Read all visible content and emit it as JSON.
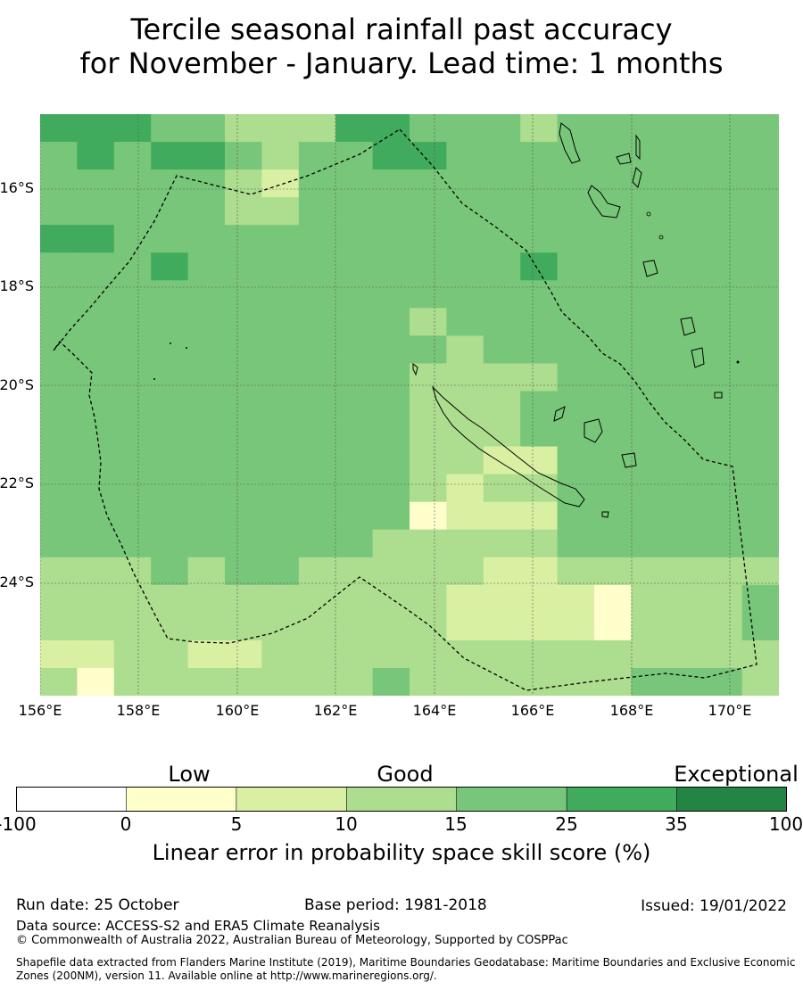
{
  "title_line1": "Tercile seasonal rainfall past accuracy",
  "title_line2": "for November - January. Lead time: 1 months",
  "y_ticks": [
    "16°S",
    "18°S",
    "20°S",
    "22°S",
    "24°S"
  ],
  "x_ticks": [
    "156°E",
    "158°E",
    "160°E",
    "162°E",
    "164°E",
    "166°E",
    "168°E",
    "170°E"
  ],
  "categories": [
    "Low",
    "Good",
    "Exceptional"
  ],
  "colorbar": {
    "label": "Linear error in probability space skill score (%)",
    "ticks": [
      "-100",
      "0",
      "5",
      "10",
      "15",
      "25",
      "35",
      "100"
    ],
    "colors": [
      "#ffffff",
      "#ffffcc",
      "#d9f0a3",
      "#addd8e",
      "#78c679",
      "#41ab5d",
      "#238443"
    ]
  },
  "footer": {
    "run_date": "Run date: 25 October",
    "base_period": "Base period: 1981-2018",
    "issued": "Issued: 19/01/2022",
    "data_source": "Data source: ACCESS-S2 and ERA5 Climate Reanalysis",
    "copyright": "© Commonwealth of Australia 2022, Australian Bureau of Meteorology, Supported by COSPPac",
    "shapefile": "Shapefile data extracted from Flanders Marine Institute (2019), Maritime Boundaries Geodatabase: Maritime Boundaries and Exclusive Economic Zones (200NM), version 11. Available online at http://www.marineregions.org/."
  }
}
